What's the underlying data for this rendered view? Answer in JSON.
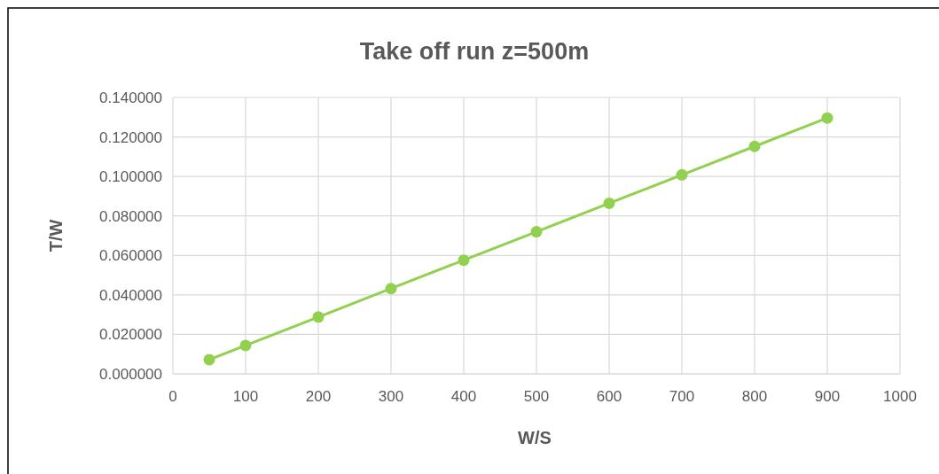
{
  "chart_data": {
    "type": "line",
    "title": "Take off run z=500m",
    "xlabel": "W/S",
    "ylabel": "T/W",
    "x": [
      50,
      100,
      200,
      300,
      400,
      500,
      600,
      700,
      800,
      900
    ],
    "series": [
      {
        "color": "#92d050",
        "values": [
          0.0072,
          0.0144,
          0.0288,
          0.0432,
          0.0576,
          0.072,
          0.0864,
          0.1008,
          0.1152,
          0.1296
        ]
      }
    ],
    "xlim": [
      0,
      1000
    ],
    "xticks": [
      0,
      100,
      200,
      300,
      400,
      500,
      600,
      700,
      800,
      900,
      1000
    ],
    "ylim": [
      0,
      0.14
    ],
    "yticks": [
      {
        "value": 0,
        "label": "0.000000"
      },
      {
        "value": 0.02,
        "label": "0.020000"
      },
      {
        "value": 0.04,
        "label": "0.040000"
      },
      {
        "value": 0.06,
        "label": "0.060000"
      },
      {
        "value": 0.08,
        "label": "0.080000"
      },
      {
        "value": 0.1,
        "label": "0.100000"
      },
      {
        "value": 0.12,
        "label": "0.120000"
      },
      {
        "value": 0.14,
        "label": "0.140000"
      }
    ],
    "grid": true,
    "marker": "circle"
  }
}
